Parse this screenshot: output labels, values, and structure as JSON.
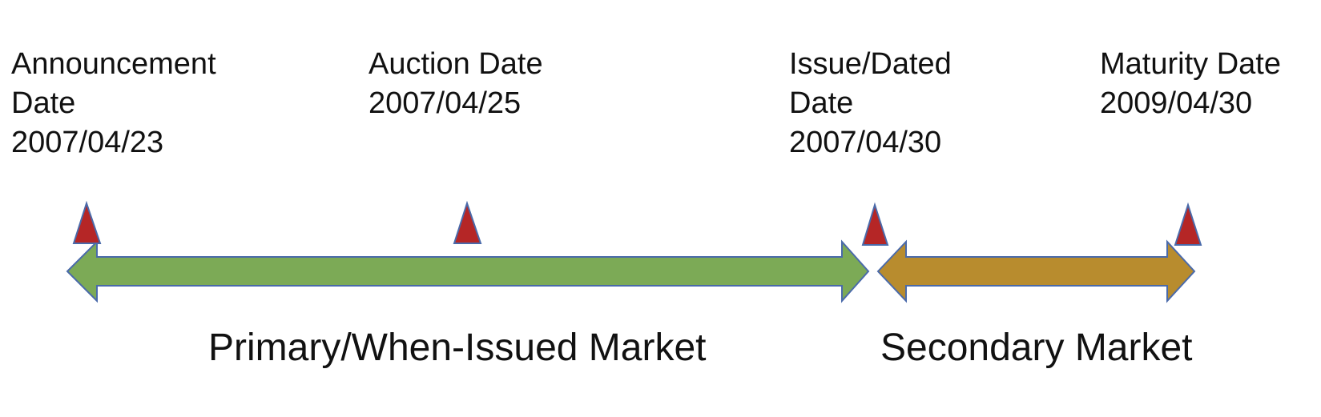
{
  "events": [
    {
      "lines": [
        "Announcement",
        "Date",
        "2007/04/23"
      ]
    },
    {
      "lines": [
        "Auction Date",
        "2007/04/25"
      ]
    },
    {
      "lines": [
        "Issue/Dated",
        "Date",
        "2007/04/30"
      ]
    },
    {
      "lines": [
        "Maturity Date",
        "2009/04/30"
      ]
    }
  ],
  "markets": {
    "primary": "Primary/When-Issued Market",
    "secondary": "Secondary Market"
  },
  "colors": {
    "primary_arrow": "#7caa56",
    "secondary_arrow": "#b88c2e",
    "arrow_stroke": "#4a6aaa",
    "marker_fill": "#b52626",
    "marker_stroke": "#4a6aaa"
  }
}
